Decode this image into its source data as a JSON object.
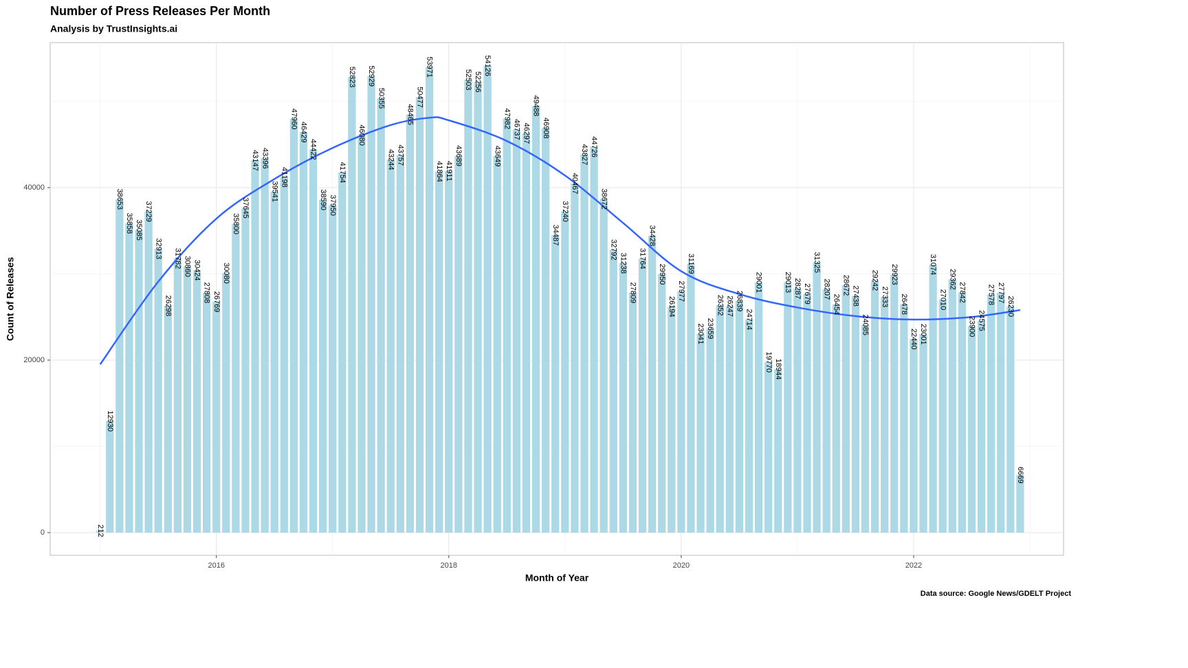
{
  "chart_data": {
    "type": "bar",
    "title": "Number of Press Releases Per Month",
    "subtitle": "Analysis by TrustInsights.ai",
    "x_label": "Month of Year",
    "y_label": "Count of Releases",
    "caption": "Data source: Google News/GDELT Project",
    "x": [
      "2015-01",
      "2015-02",
      "2015-03",
      "2015-04",
      "2015-05",
      "2015-06",
      "2015-07",
      "2015-08",
      "2015-09",
      "2015-10",
      "2015-11",
      "2015-12",
      "2016-01",
      "2016-02",
      "2016-03",
      "2016-04",
      "2016-05",
      "2016-06",
      "2016-07",
      "2016-08",
      "2016-09",
      "2016-10",
      "2016-11",
      "2016-12",
      "2017-01",
      "2017-02",
      "2017-03",
      "2017-04",
      "2017-05",
      "2017-06",
      "2017-07",
      "2017-08",
      "2017-09",
      "2017-10",
      "2017-11",
      "2017-12",
      "2018-01",
      "2018-02",
      "2018-03",
      "2018-04",
      "2018-05",
      "2018-06",
      "2018-07",
      "2018-08",
      "2018-09",
      "2018-10",
      "2018-11",
      "2018-12",
      "2019-01",
      "2019-02",
      "2019-03",
      "2019-04",
      "2019-05",
      "2019-06",
      "2019-07",
      "2019-08",
      "2019-09",
      "2019-10",
      "2019-11",
      "2019-12",
      "2020-01",
      "2020-02",
      "2020-03",
      "2020-04",
      "2020-05",
      "2020-06",
      "2020-07",
      "2020-08",
      "2020-09",
      "2020-10",
      "2020-11",
      "2020-12",
      "2021-01",
      "2021-02",
      "2021-03",
      "2021-04",
      "2021-05",
      "2021-06",
      "2021-07",
      "2021-08",
      "2021-09",
      "2021-10",
      "2021-11",
      "2021-12",
      "2022-01",
      "2022-02",
      "2022-03",
      "2022-04",
      "2022-05",
      "2022-06",
      "2022-07",
      "2022-08",
      "2022-09",
      "2022-10",
      "2022-11",
      "2022-12"
    ],
    "values": [
      212,
      12930,
      38653,
      35858,
      35085,
      37229,
      32913,
      26298,
      31782,
      30860,
      30424,
      27808,
      26769,
      30080,
      35800,
      37645,
      43147,
      43396,
      39541,
      41198,
      47960,
      46429,
      44422,
      38590,
      37950,
      41754,
      52823,
      46080,
      52929,
      50355,
      43244,
      43757,
      48465,
      50477,
      53971,
      41864,
      41911,
      43689,
      52503,
      52256,
      54126,
      43649,
      47982,
      46737,
      46297,
      49488,
      46908,
      34487,
      37240,
      40467,
      43827,
      44726,
      38672,
      32792,
      31238,
      27809,
      31764,
      34428,
      29950,
      26194,
      27977,
      31169,
      23041,
      23659,
      26352,
      26247,
      26839,
      24714,
      29001,
      19770,
      18944,
      29013,
      28287,
      27679,
      31325,
      28207,
      26454,
      28672,
      27438,
      24085,
      29242,
      27333,
      29923,
      26478,
      22440,
      23001,
      31074,
      27010,
      29362,
      27842,
      23900,
      24575,
      27578,
      27797,
      26230,
      6669
    ],
    "color": "#add8e6",
    "xlim": [
      2014.57,
      2023.29
    ],
    "xticks": [
      2016,
      2018,
      2020,
      2022
    ],
    "xminorticks": [
      2015,
      2017,
      2019,
      2021,
      2023
    ],
    "ylim": [
      -2630,
      56810
    ],
    "yticks": [
      0,
      20000,
      40000
    ],
    "yminorticks": [
      10000,
      30000,
      50000
    ],
    "grid": true,
    "trend": {
      "color": "#3366ff",
      "x": [
        "2015-01",
        "2015-07",
        "2016-01",
        "2016-07",
        "2017-01",
        "2017-07",
        "2017-11",
        "2018-01",
        "2018-07",
        "2019-01",
        "2019-07",
        "2020-01",
        "2020-07",
        "2021-01",
        "2021-07",
        "2022-01",
        "2022-07",
        "2022-12"
      ],
      "values": [
        19500,
        29100,
        36400,
        41000,
        44600,
        47250,
        48100,
        47800,
        45400,
        41400,
        35900,
        30300,
        27650,
        26100,
        25100,
        24700,
        25000,
        25800
      ]
    }
  }
}
